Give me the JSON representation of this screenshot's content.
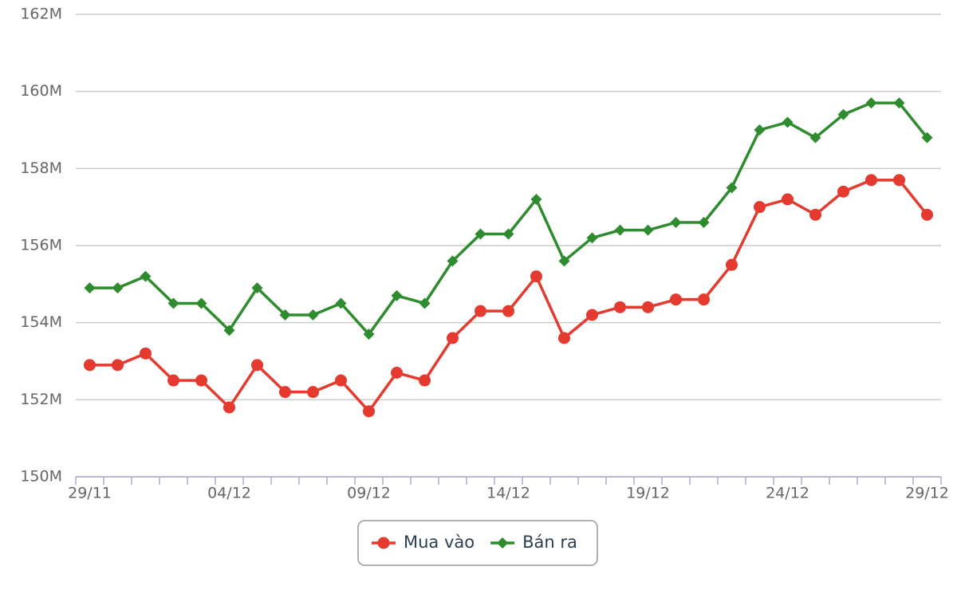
{
  "chart_data": {
    "type": "line",
    "categories": [
      "29/11",
      null,
      null,
      null,
      null,
      "04/12",
      null,
      null,
      null,
      null,
      "09/12",
      null,
      null,
      null,
      null,
      "14/12",
      null,
      null,
      null,
      null,
      "19/12",
      null,
      null,
      null,
      null,
      "24/12",
      null,
      null,
      null,
      null,
      "29/12"
    ],
    "series": [
      {
        "name": "Mua vào",
        "color": "#e53a2f",
        "marker": "circle",
        "values": [
          152.9,
          152.9,
          153.2,
          152.5,
          152.5,
          151.8,
          152.9,
          152.2,
          152.2,
          152.5,
          151.7,
          152.7,
          152.5,
          153.6,
          154.3,
          154.3,
          155.2,
          153.6,
          154.2,
          154.4,
          154.4,
          154.6,
          154.6,
          155.5,
          157.0,
          157.2,
          156.8,
          157.4,
          157.7,
          157.7,
          156.8
        ]
      },
      {
        "name": "Bán ra",
        "color": "#2e8b2e",
        "marker": "diamond",
        "values": [
          154.9,
          154.9,
          155.2,
          154.5,
          154.5,
          153.8,
          154.9,
          154.2,
          154.2,
          154.5,
          153.7,
          154.7,
          154.5,
          155.6,
          156.3,
          156.3,
          157.2,
          155.6,
          156.2,
          156.4,
          156.4,
          156.6,
          156.6,
          157.5,
          159.0,
          159.2,
          158.8,
          159.4,
          159.7,
          159.7,
          158.8
        ]
      }
    ],
    "ylim": [
      150,
      162
    ],
    "yticks": [
      {
        "value": 150,
        "label": "150M"
      },
      {
        "value": 152,
        "label": "152M"
      },
      {
        "value": 154,
        "label": "154M"
      },
      {
        "value": 156,
        "label": "156M"
      },
      {
        "value": 158,
        "label": "158M"
      },
      {
        "value": 160,
        "label": "160M"
      },
      {
        "value": 162,
        "label": "162M"
      }
    ],
    "grid": true,
    "legend": "bottom"
  }
}
